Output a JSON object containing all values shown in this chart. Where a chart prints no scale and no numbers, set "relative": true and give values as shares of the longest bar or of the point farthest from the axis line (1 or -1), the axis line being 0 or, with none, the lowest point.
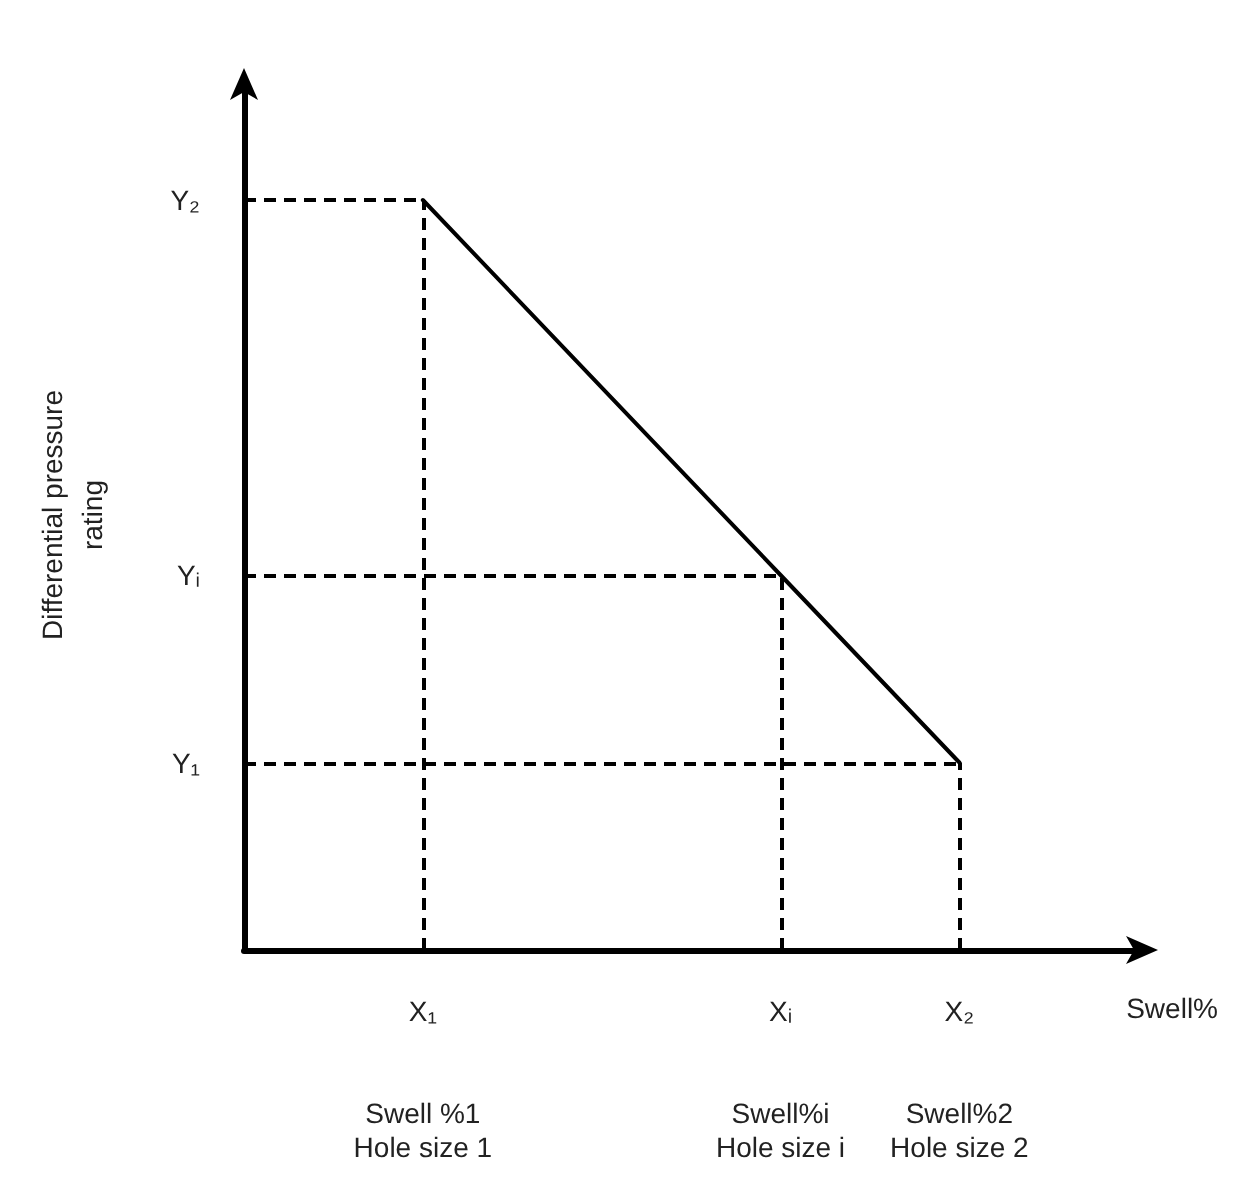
{
  "chart_data": {
    "type": "line",
    "relative": true,
    "xlabel": "Swell%",
    "ylabel": "Differential pressure\nrating",
    "categories": [
      null,
      "X₁\n\n\nSwell %1\nHole size 1",
      null,
      "Xᵢ\n\n\nSwell%i\nHole size i",
      "X₂\n\n\nSwell%2\nHole size 2",
      null
    ],
    "ref_lines": [
      {
        "axis": "y",
        "value": 0.25,
        "label": "Y₁",
        "line_style": "dashed",
        "color": "#000000"
      },
      {
        "axis": "y",
        "value": 0.5,
        "label": "Yᵢ",
        "line_style": "dashed",
        "color": "#000000"
      },
      {
        "axis": "y",
        "value": 1,
        "label": "Y₂",
        "line_style": "dashed",
        "color": "#000000"
      },
      {
        "axis": "x",
        "value": "X₁\n\n\nSwell %1\nHole size 1",
        "line_style": "dashed",
        "color": "#000000"
      },
      {
        "axis": "x",
        "value": "Xᵢ\n\n\nSwell%i\nHole size i",
        "line_style": "dashed",
        "color": "#000000"
      },
      {
        "axis": "x",
        "value": "X₂\n\n\nSwell%2\nHole size 2",
        "line_style": "dashed",
        "color": "#000000"
      }
    ],
    "series": [
      {
        "color": "#000000",
        "values": [
          null,
          1,
          null,
          0.5,
          0.25,
          null
        ]
      }
    ],
    "grid": false,
    "marker": "none",
    "line_style": "solid"
  }
}
